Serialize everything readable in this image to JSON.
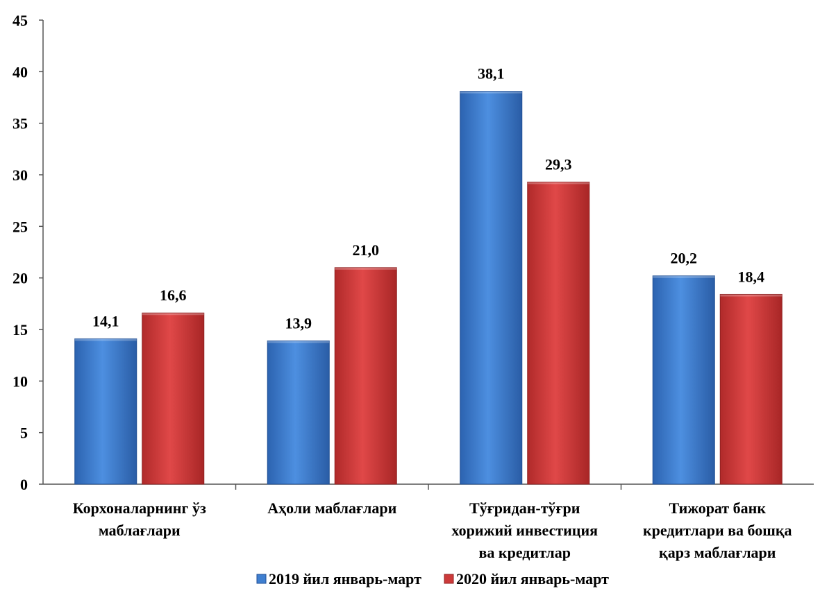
{
  "chart_data": {
    "type": "bar",
    "categories": [
      [
        "Корхоналарнинг ўз",
        "маблағлари"
      ],
      [
        "Аҳоли маблағлари"
      ],
      [
        "Тўғридан-тўғри",
        "хорижий инвестиция",
        "ва кредитлар"
      ],
      [
        "Тижорат банк",
        "кредитлари ва бошқа",
        "қарз маблағлари"
      ]
    ],
    "series": [
      {
        "name": "2019 йил январь-март",
        "values": [
          14.1,
          13.9,
          38.1,
          20.2
        ],
        "labels": [
          "14,1",
          "13,9",
          "38,1",
          "20,2"
        ],
        "color": "#3f7fd0"
      },
      {
        "name": "2020 йил январь-март",
        "values": [
          16.6,
          21.0,
          29.3,
          18.4
        ],
        "labels": [
          "16,6",
          "21,0",
          "29,3",
          "18,4"
        ],
        "color": "#cc3a3a"
      }
    ],
    "ylim": [
      0,
      45
    ],
    "yticks": [
      0,
      5,
      10,
      15,
      20,
      25,
      30,
      35,
      40,
      45
    ],
    "title": "",
    "xlabel": "",
    "ylabel": "",
    "legend": "bottom",
    "grid": false
  }
}
